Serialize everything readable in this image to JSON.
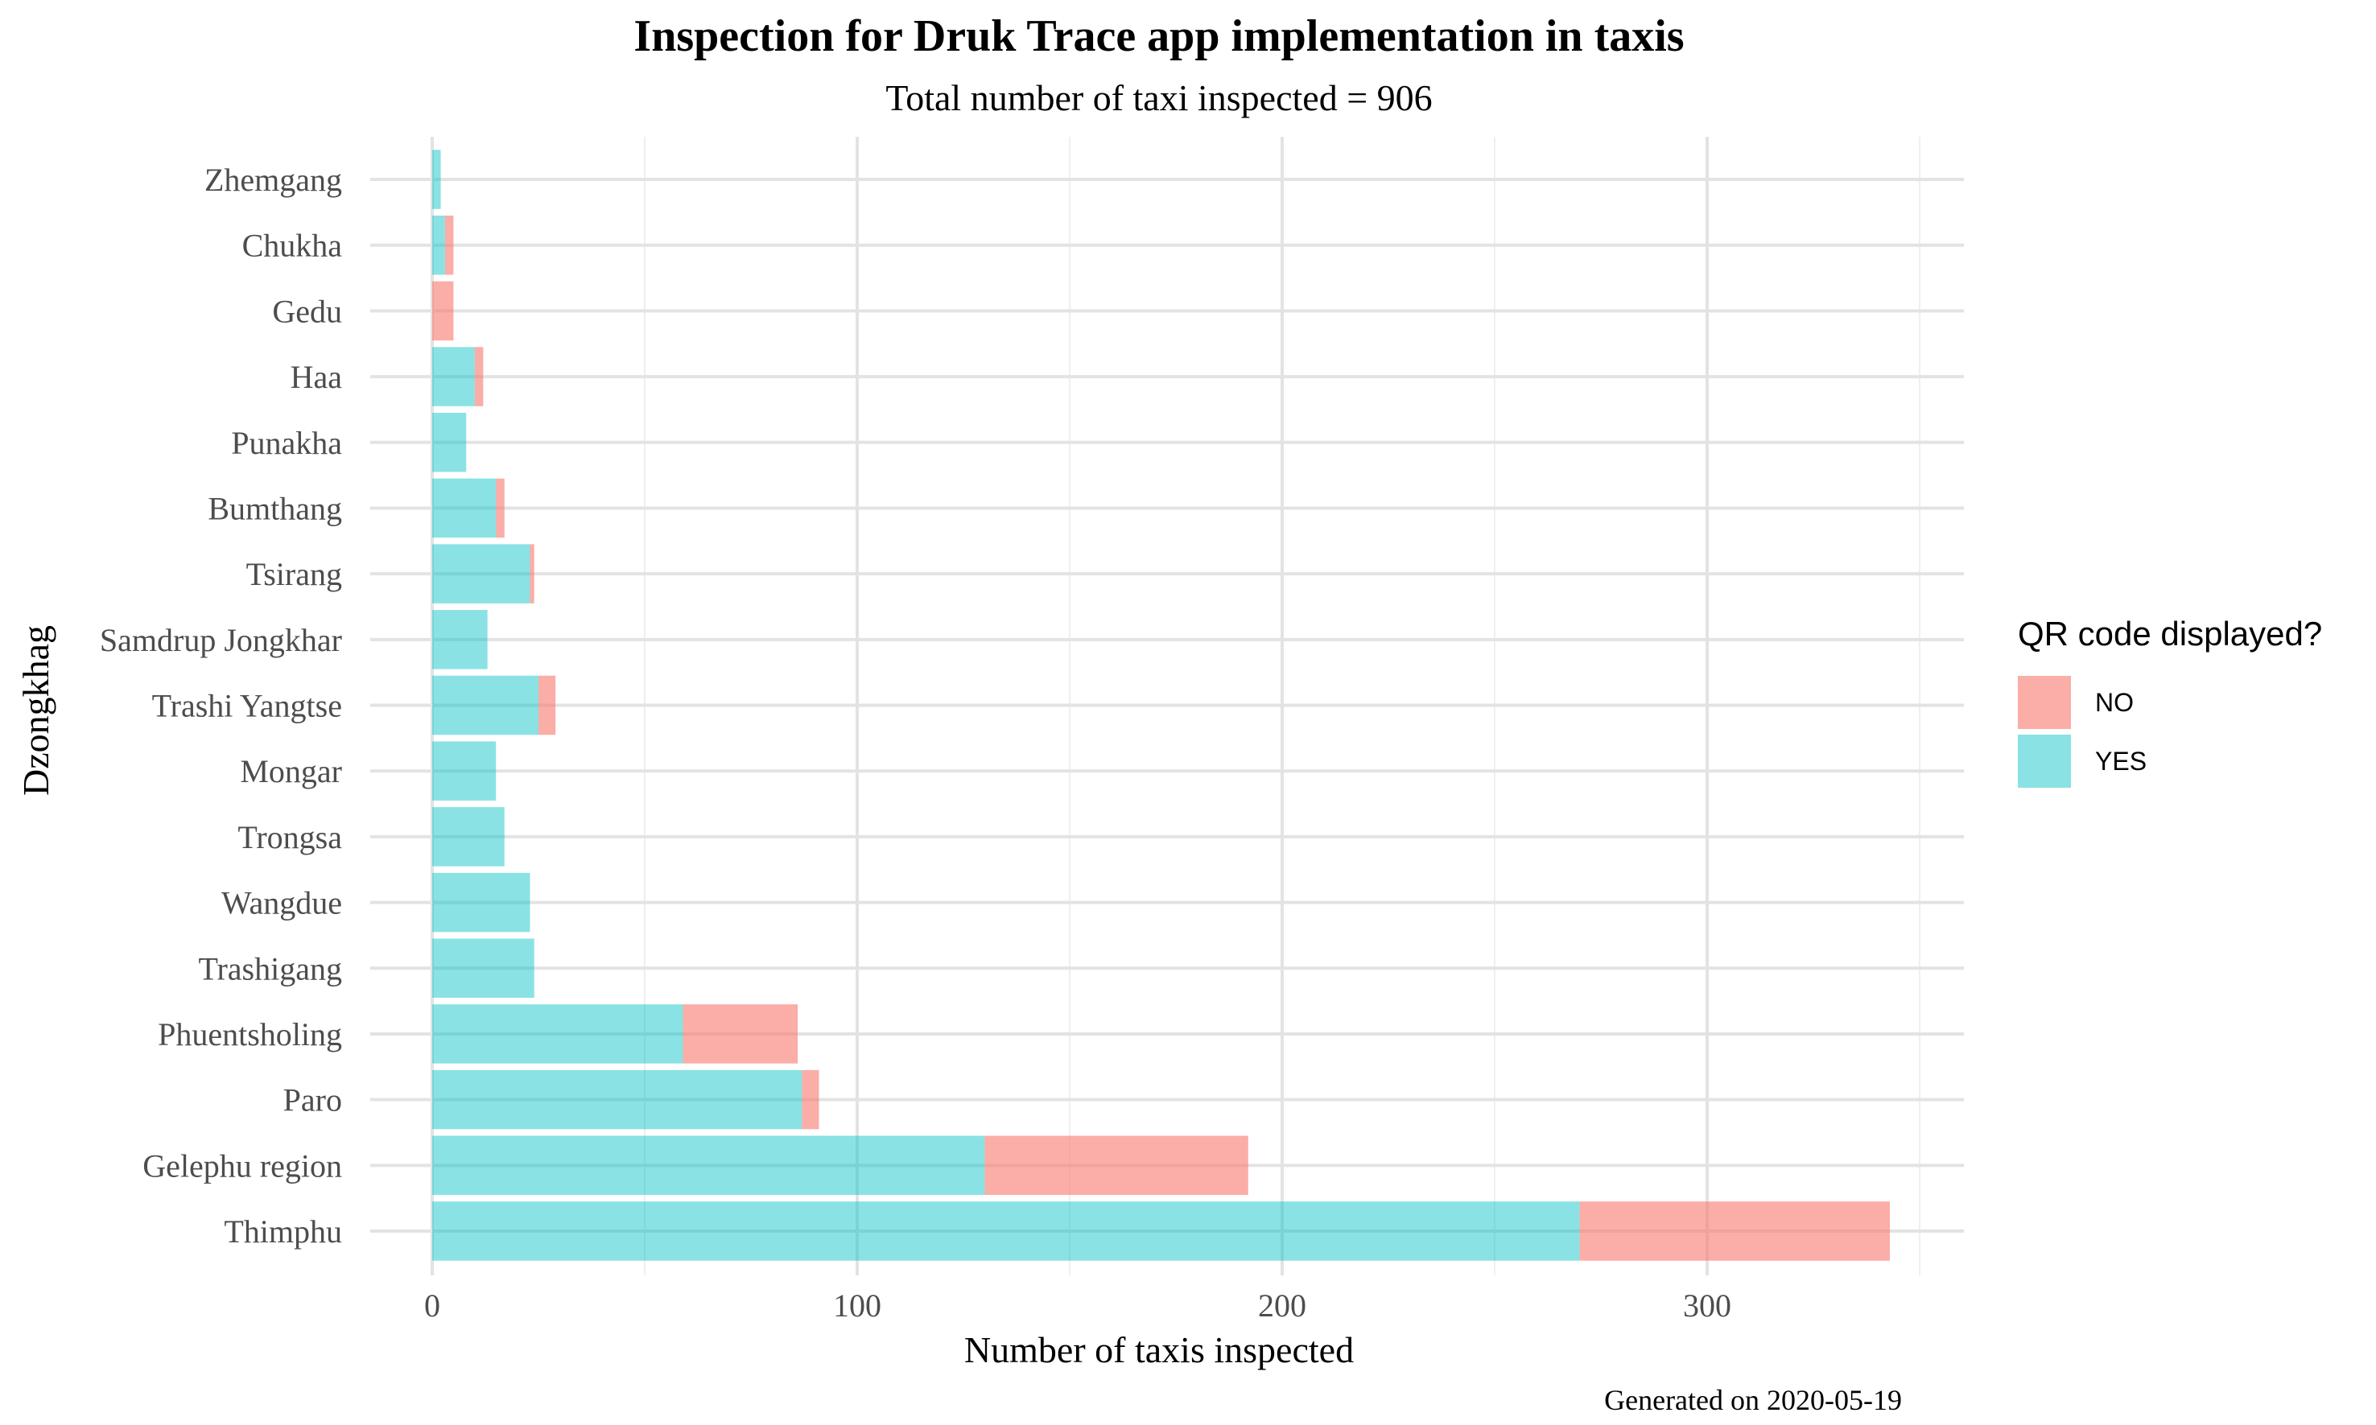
{
  "chart_data": {
    "type": "bar",
    "orientation": "horizontal",
    "stacked": true,
    "title": "Inspection for Druk Trace app implementation in taxis",
    "subtitle": "Total number of taxi inspected =  906",
    "xlabel": "Number of taxis inspected",
    "ylabel": "Dzongkhag",
    "caption": "Generated on  2020-05-19",
    "xlim": [
      0,
      350
    ],
    "x_ticks": [
      0,
      100,
      200,
      300
    ],
    "grid": true,
    "legend": {
      "title": "QR code displayed?",
      "position": "right",
      "entries": [
        "NO",
        "YES"
      ]
    },
    "colors": {
      "NO": "#F8766D",
      "YES": "#00BFC4"
    },
    "categories": [
      "Zhemgang",
      "Chukha",
      "Gedu",
      "Haa",
      "Punakha",
      "Bumthang",
      "Tsirang",
      "Samdrup Jongkhar",
      "Trashi Yangtse",
      "Mongar",
      "Trongsa",
      "Wangdue",
      "Trashigang",
      "Phuentsholing",
      "Paro",
      "Gelephu region",
      "Thimphu"
    ],
    "series": [
      {
        "name": "YES",
        "values": [
          2,
          3,
          0,
          10,
          8,
          15,
          23,
          13,
          25,
          15,
          17,
          23,
          24,
          59,
          87,
          130,
          270
        ]
      },
      {
        "name": "NO",
        "values": [
          0,
          2,
          5,
          2,
          0,
          2,
          1,
          0,
          4,
          0,
          0,
          0,
          0,
          27,
          4,
          62,
          73
        ]
      }
    ]
  }
}
